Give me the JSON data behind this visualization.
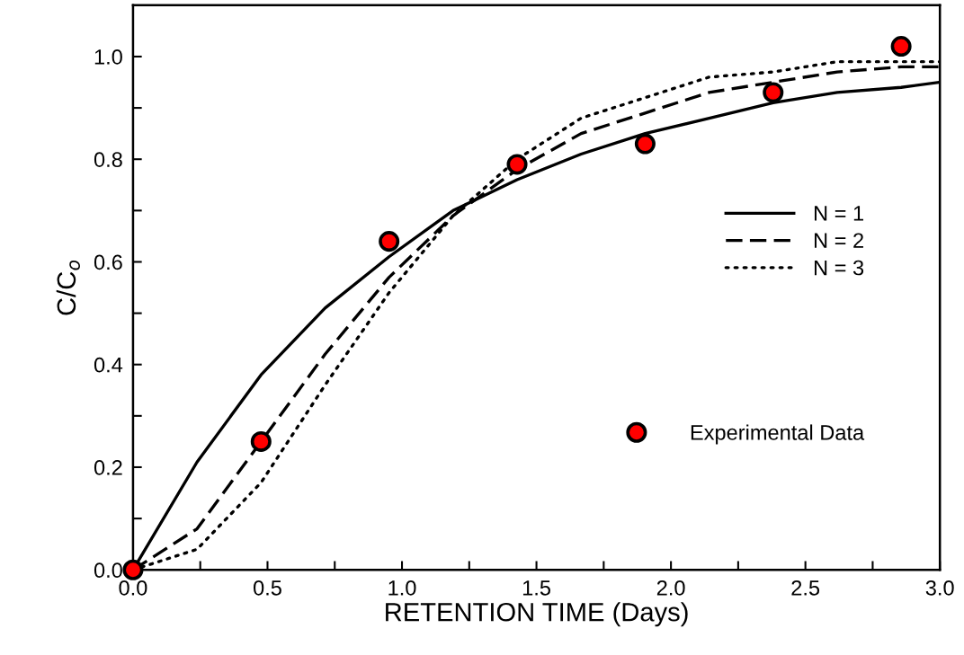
{
  "chart_data": {
    "type": "line",
    "xlabel": "RETENTION TIME (Days)",
    "ylabel": "C/C$_{o}$",
    "xlim": [
      0,
      3.0
    ],
    "ylim": [
      0,
      1.1
    ],
    "xticks": [
      {
        "value": 0,
        "label": "0.0"
      },
      {
        "value": 0.25,
        "label": null
      },
      {
        "value": 0.5,
        "label": "0.5"
      },
      {
        "value": 0.75,
        "label": null
      },
      {
        "value": 1.0,
        "label": "1.0"
      },
      {
        "value": 1.25,
        "label": null
      },
      {
        "value": 1.5,
        "label": "1.5"
      },
      {
        "value": 1.75,
        "label": null
      },
      {
        "value": 2.0,
        "label": "2.0"
      },
      {
        "value": 2.25,
        "label": null
      },
      {
        "value": 2.5,
        "label": "2.5"
      },
      {
        "value": 2.75,
        "label": null
      },
      {
        "value": 3.0,
        "label": "3.0"
      }
    ],
    "yticks": [
      {
        "value": 0,
        "label": "0.0"
      },
      {
        "value": 0.1,
        "label": null
      },
      {
        "value": 0.2,
        "label": "0.2"
      },
      {
        "value": 0.3,
        "label": null
      },
      {
        "value": 0.4,
        "label": "0.4"
      },
      {
        "value": 0.5,
        "label": null
      },
      {
        "value": 0.6,
        "label": "0.6"
      },
      {
        "value": 0.7,
        "label": null
      },
      {
        "value": 0.8,
        "label": "0.8"
      },
      {
        "value": 0.9,
        "label": null
      },
      {
        "value": 1.0,
        "label": "1.0"
      }
    ],
    "grid": false,
    "legend": "right",
    "series": [
      {
        "name": "N = 1",
        "color": "#000000",
        "line_style": "solid",
        "marker": "none",
        "x": [
          0,
          0.238,
          0.476,
          0.714,
          0.952,
          1.19,
          1.428,
          1.666,
          1.904,
          2.142,
          2.38,
          2.618,
          2.856,
          3.0
        ],
        "values": [
          0,
          0.21,
          0.38,
          0.51,
          0.61,
          0.7,
          0.76,
          0.81,
          0.85,
          0.88,
          0.91,
          0.93,
          0.94,
          0.95
        ]
      },
      {
        "name": "N = 2",
        "color": "#000000",
        "line_style": "dashed",
        "marker": "none",
        "x": [
          0,
          0.238,
          0.476,
          0.714,
          0.952,
          1.19,
          1.428,
          1.666,
          1.904,
          2.142,
          2.38,
          2.618,
          2.856,
          3.0
        ],
        "values": [
          0,
          0.08,
          0.25,
          0.42,
          0.57,
          0.69,
          0.78,
          0.85,
          0.89,
          0.93,
          0.95,
          0.97,
          0.98,
          0.98
        ]
      },
      {
        "name": "N = 3",
        "color": "#000000",
        "line_style": "dotted",
        "marker": "none",
        "x": [
          0,
          0.238,
          0.476,
          0.714,
          0.952,
          1.19,
          1.428,
          1.666,
          1.904,
          2.142,
          2.38,
          2.618,
          2.856,
          3.0
        ],
        "values": [
          0,
          0.04,
          0.17,
          0.36,
          0.54,
          0.69,
          0.8,
          0.88,
          0.92,
          0.96,
          0.97,
          0.99,
          0.99,
          0.99
        ]
      },
      {
        "name": "Experimental Data",
        "type": "scatter",
        "color": "#ff0000",
        "marker": "circle",
        "x": [
          0,
          0.476,
          0.952,
          1.428,
          1.904,
          2.38,
          2.856
        ],
        "values": [
          0,
          0.25,
          0.64,
          0.79,
          0.83,
          0.93,
          1.02
        ]
      }
    ]
  }
}
